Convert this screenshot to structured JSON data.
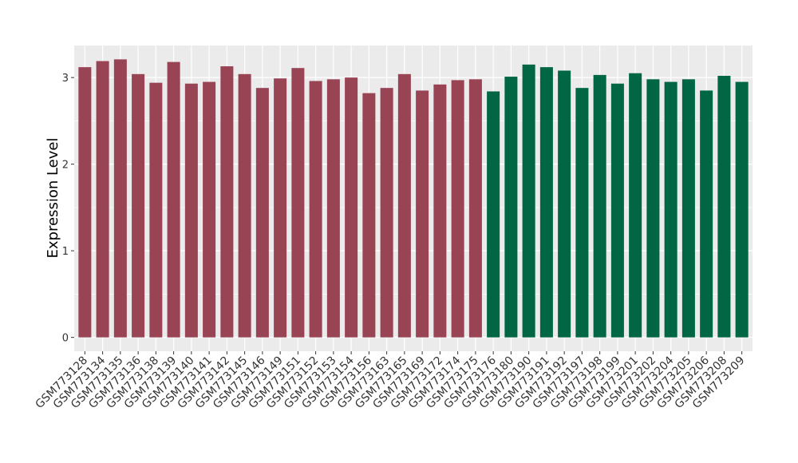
{
  "chart_data": {
    "type": "bar",
    "y_label": "Expression Level",
    "categories": [
      "GSM773128",
      "GSM773134",
      "GSM773135",
      "GSM773136",
      "GSM773138",
      "GSM773139",
      "GSM773140",
      "GSM773141",
      "GSM773142",
      "GSM773145",
      "GSM773146",
      "GSM773149",
      "GSM773151",
      "GSM773152",
      "GSM773153",
      "GSM773154",
      "GSM773156",
      "GSM773163",
      "GSM773165",
      "GSM773169",
      "GSM773172",
      "GSM773174",
      "GSM773175",
      "GSM773176",
      "GSM773180",
      "GSM773190",
      "GSM773191",
      "GSM773192",
      "GSM773197",
      "GSM773198",
      "GSM773199",
      "GSM773201",
      "GSM773202",
      "GSM773204",
      "GSM773205",
      "GSM773206",
      "GSM773208",
      "GSM773209"
    ],
    "values": [
      3.12,
      3.19,
      3.21,
      3.04,
      2.94,
      3.18,
      2.93,
      2.95,
      3.13,
      3.04,
      2.88,
      2.99,
      3.11,
      2.96,
      2.98,
      3.0,
      2.82,
      2.88,
      3.04,
      2.85,
      2.92,
      2.97,
      2.98,
      2.84,
      3.01,
      3.15,
      3.12,
      3.08,
      2.88,
      3.03,
      2.93,
      3.05,
      2.98,
      2.95,
      2.98,
      2.85,
      3.02,
      2.95
    ],
    "colors": [
      "#994455",
      "#994455",
      "#994455",
      "#994455",
      "#994455",
      "#994455",
      "#994455",
      "#994455",
      "#994455",
      "#994455",
      "#994455",
      "#994455",
      "#994455",
      "#994455",
      "#994455",
      "#994455",
      "#994455",
      "#994455",
      "#994455",
      "#994455",
      "#994455",
      "#994455",
      "#994455",
      "#006644",
      "#006644",
      "#006644",
      "#006644",
      "#006644",
      "#006644",
      "#006644",
      "#006644",
      "#006644",
      "#006644",
      "#006644",
      "#006644",
      "#006644",
      "#006644",
      "#006644"
    ],
    "ylim": [
      -0.16,
      3.37
    ],
    "yticks": [
      0,
      1,
      2,
      3
    ],
    "minor_yticks": [
      0.5,
      1.5,
      2.5
    ],
    "grid": true
  }
}
